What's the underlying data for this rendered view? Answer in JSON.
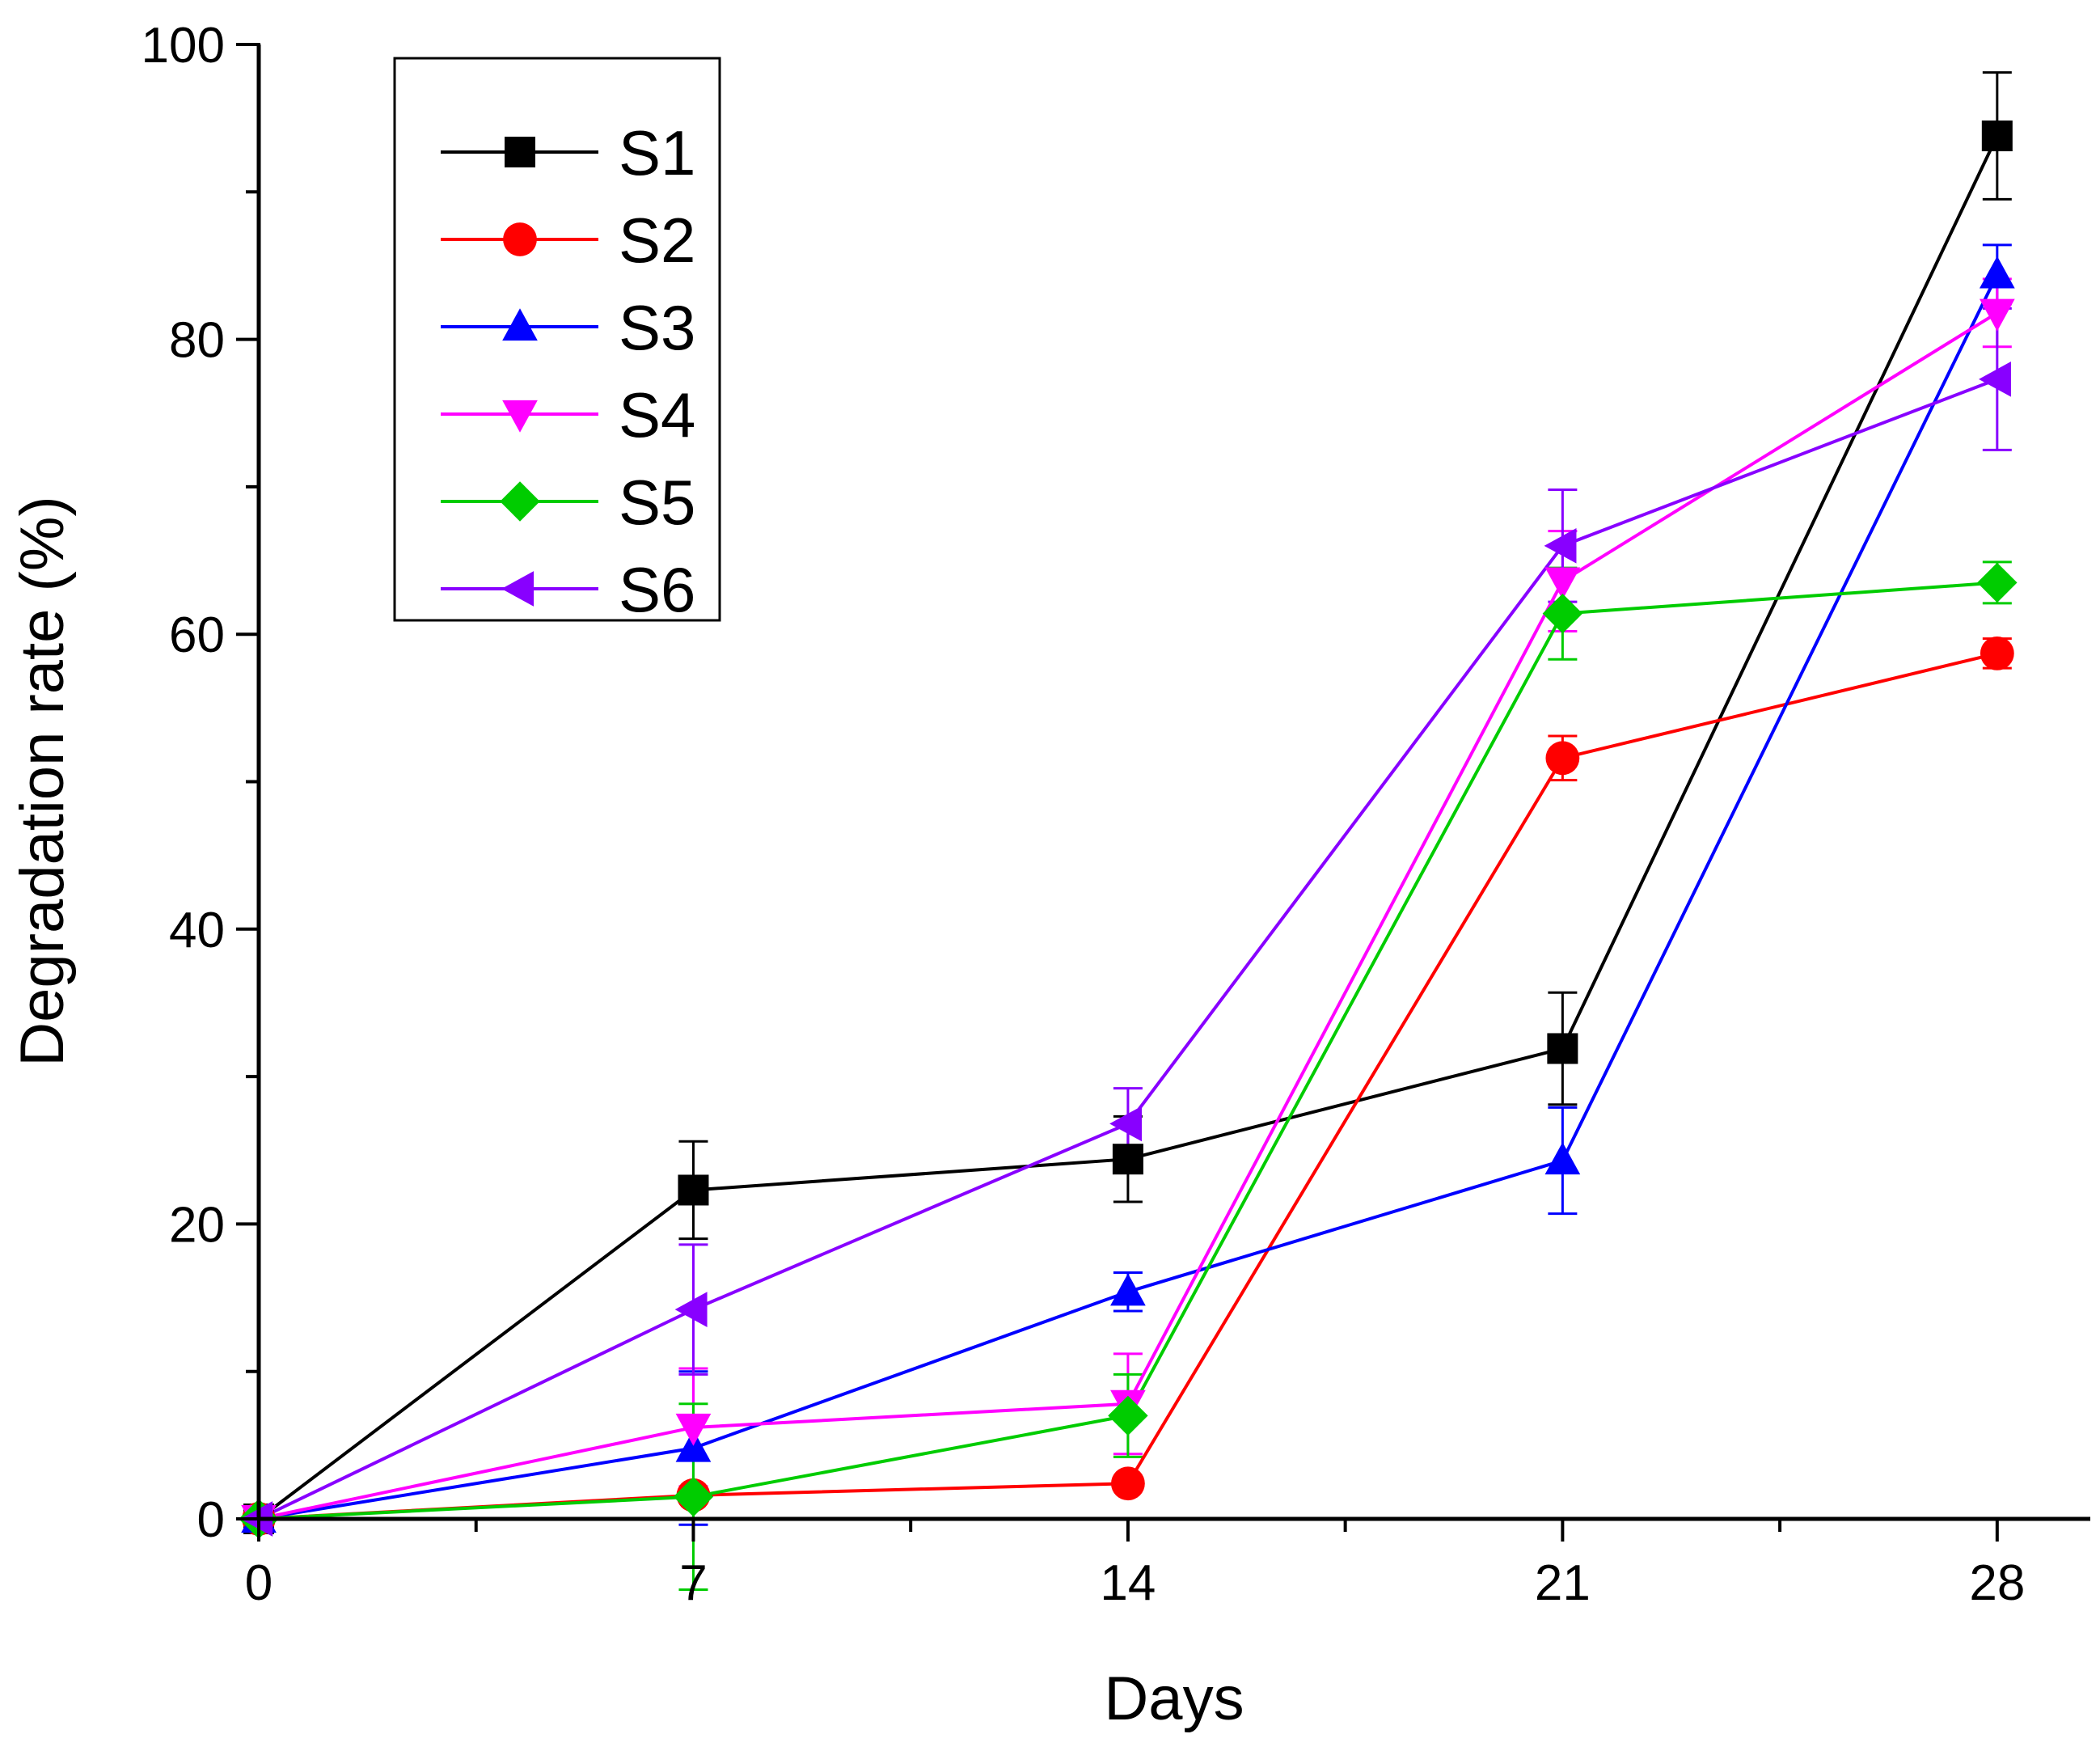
{
  "chart_data": {
    "type": "line",
    "title": "",
    "xlabel": "Days",
    "ylabel": "Degradation rate (%)",
    "xlim": [
      0,
      29.5
    ],
    "ylim": [
      0,
      100
    ],
    "x": [
      0,
      7,
      14,
      21,
      28
    ],
    "x_tick_labels": [
      "0",
      "7",
      "14",
      "21",
      "28"
    ],
    "y_tick_labels": [
      "0",
      "20",
      "40",
      "60",
      "80",
      "100"
    ],
    "legend_position": "top-left",
    "grid": false,
    "series": [
      {
        "name": "S1",
        "color": "#000000",
        "marker": "square",
        "values": [
          0,
          22.3,
          24.4,
          31.9,
          93.8
        ],
        "errors": [
          0,
          3.3,
          2.9,
          3.8,
          4.3
        ]
      },
      {
        "name": "S2",
        "color": "#ff0000",
        "marker": "circle",
        "values": [
          0,
          1.6,
          2.4,
          51.6,
          58.7
        ],
        "errors": [
          0,
          0.5,
          0.5,
          1.5,
          1.0
        ]
      },
      {
        "name": "S3",
        "color": "#0000ff",
        "marker": "triangle-up",
        "values": [
          0,
          4.8,
          15.4,
          24.3,
          84.4
        ],
        "errors": [
          0,
          5.2,
          1.3,
          3.6,
          2.0
        ]
      },
      {
        "name": "S4",
        "color": "#ff00ff",
        "marker": "triangle-down",
        "values": [
          0,
          6.2,
          7.8,
          63.6,
          81.8
        ],
        "errors": [
          0,
          4.0,
          3.4,
          3.4,
          2.3
        ]
      },
      {
        "name": "S5",
        "color": "#00cc00",
        "marker": "diamond",
        "values": [
          0,
          1.5,
          7.0,
          61.4,
          63.5
        ],
        "errors": [
          0,
          6.3,
          2.8,
          3.1,
          1.4
        ]
      },
      {
        "name": "S6",
        "color": "#8800ff",
        "marker": "triangle-left",
        "values": [
          0,
          14.2,
          26.8,
          66.0,
          77.3
        ],
        "errors": [
          0,
          4.4,
          2.4,
          3.8,
          4.8
        ]
      }
    ]
  }
}
